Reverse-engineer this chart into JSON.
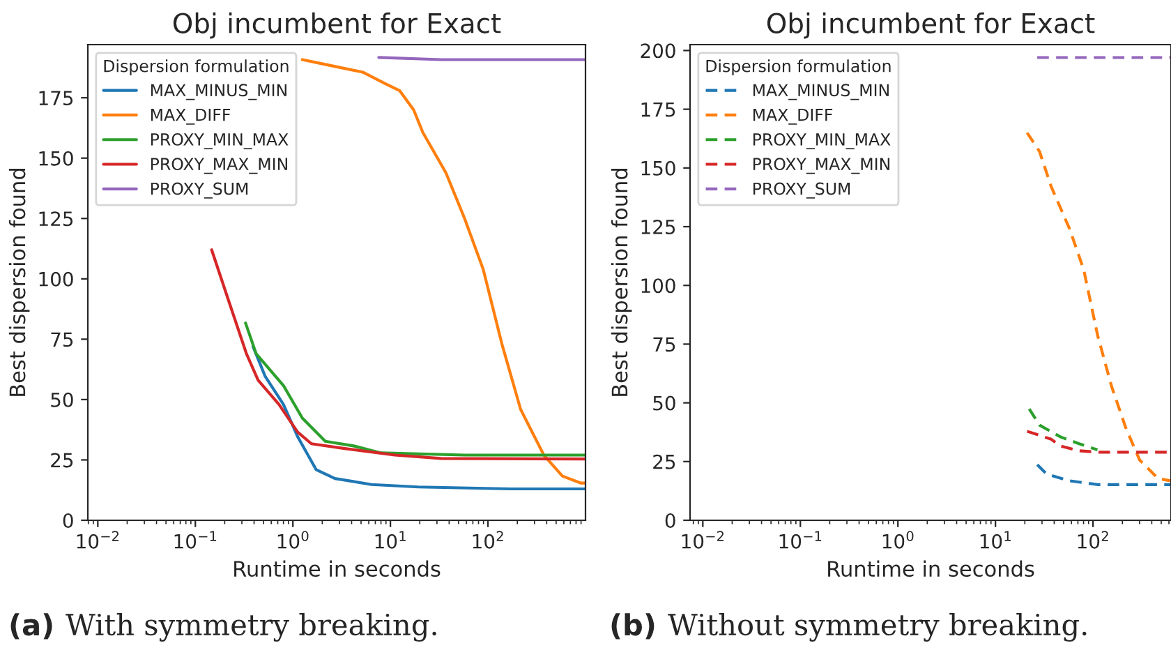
{
  "chart_data": [
    {
      "type": "line",
      "title": "Obj incumbent for Exact",
      "xlabel": "Runtime in seconds",
      "ylabel": "Best dispersion found",
      "legend_title": "Dispersion formulation",
      "legend": "top left",
      "log": "x",
      "line_style": "solid",
      "grid": false,
      "xlim": [
        0.0079,
        1000
      ],
      "ylim": [
        0,
        197
      ],
      "xticks": [
        {
          "value": 0.01,
          "label": "10$^{−2}$"
        },
        {
          "value": 0.1,
          "label": "10$^{−1}$"
        },
        {
          "value": 1,
          "label": "10$^{0}$"
        },
        {
          "value": 10,
          "label": "10$^{1}$"
        },
        {
          "value": 100,
          "label": "10$^{2}$"
        }
      ],
      "yticks": [
        0,
        25,
        50,
        75,
        100,
        125,
        150,
        175
      ],
      "annotations": [
        "(a) With symmetry breaking."
      ],
      "series": [
        {
          "name": "MAX_MINUS_MIN",
          "color": "#1f77b4",
          "x": [
            0.39,
            0.52,
            0.8,
            1.12,
            1.73,
            2.7,
            6.4,
            19.3,
            172,
            1000
          ],
          "values": [
            72,
            59.6,
            48,
            34.6,
            21,
            17.3,
            14.8,
            13.8,
            13,
            13
          ]
        },
        {
          "name": "MAX_DIFF",
          "color": "#ff7f0e",
          "x": [
            1.25,
            2.15,
            5.2,
            8.9,
            12.4,
            17.3,
            21.5,
            37,
            57.6,
            89.6,
            139,
            216,
            374,
            580,
            900,
            1000
          ],
          "values": [
            190.8,
            188.8,
            185.6,
            180.8,
            178,
            170,
            160.6,
            144,
            125,
            103.8,
            73,
            46,
            27,
            18.3,
            15.4,
            15.4
          ]
        },
        {
          "name": "PROXY_MIN_MAX",
          "color": "#2ca02c",
          "x": [
            0.327,
            0.42,
            0.8,
            1.25,
            2.15,
            4.2,
            8,
            57.6,
            1000
          ],
          "values": [
            81.7,
            69,
            55.8,
            42.3,
            32.7,
            30.8,
            27.9,
            27,
            27
          ]
        },
        {
          "name": "PROXY_MAX_MIN",
          "color": "#d62728",
          "x": [
            0.147,
            0.215,
            0.334,
            0.44,
            0.72,
            1.12,
            1.55,
            3.3,
            11.1,
            33,
            1000
          ],
          "values": [
            112,
            92,
            69,
            58,
            48,
            36.5,
            31.7,
            29.8,
            27,
            25.6,
            25.4
          ]
        },
        {
          "name": "PROXY_SUM",
          "color": "#9467bd",
          "x": [
            7.6,
            33,
            1000
          ],
          "values": [
            191.7,
            190.8,
            190.8
          ]
        }
      ]
    },
    {
      "type": "line",
      "title": "Obj incumbent for Exact",
      "xlabel": "Runtime in seconds",
      "ylabel": "Best dispersion found",
      "legend_title": "Dispersion formulation",
      "legend": "top left",
      "log": "x",
      "line_style": "dashed",
      "grid": false,
      "xlim": [
        0.0074,
        630
      ],
      "ylim": [
        0,
        202.5
      ],
      "xticks": [
        {
          "value": 0.01,
          "label": "10$^{−2}$"
        },
        {
          "value": 0.1,
          "label": "10$^{−1}$"
        },
        {
          "value": 1,
          "label": "10$^{0}$"
        },
        {
          "value": 10,
          "label": "10$^{1}$"
        },
        {
          "value": 100,
          "label": "10$^{2}$"
        }
      ],
      "yticks": [
        0,
        25,
        50,
        75,
        100,
        125,
        150,
        175,
        200
      ],
      "annotations": [
        "(b) Without symmetry breaking."
      ],
      "series": [
        {
          "name": "MAX_MINUS_MIN",
          "color": "#1f77b4",
          "x": [
            26.8,
            33.4,
            57.6,
            111,
            620
          ],
          "values": [
            23.7,
            19.7,
            16.8,
            15.2,
            15.2
          ]
        },
        {
          "name": "MAX_DIFF",
          "color": "#ff7f0e",
          "x": [
            21.1,
            28.3,
            37.3,
            57.6,
            80.4,
            111,
            155,
            216,
            300,
            464,
            620
          ],
          "values": [
            165,
            157,
            142,
            124,
            106.6,
            79,
            57,
            39.5,
            25.7,
            17.8,
            16.8
          ]
        },
        {
          "name": "PROXY_MIN_MAX",
          "color": "#2ca02c",
          "x": [
            22.2,
            28.3,
            46.4,
            72,
            111
          ],
          "values": [
            47.4,
            40.5,
            35.5,
            32.6,
            30
          ]
        },
        {
          "name": "PROXY_MAX_MIN",
          "color": "#d62728",
          "x": [
            21.1,
            37.3,
            46.4,
            72,
            111,
            620
          ],
          "values": [
            37.9,
            34.5,
            31.6,
            29.6,
            29,
            29
          ]
        },
        {
          "name": "PROXY_SUM",
          "color": "#9467bd",
          "x": [
            26.8,
            620
          ],
          "values": [
            197,
            197
          ]
        }
      ]
    }
  ]
}
